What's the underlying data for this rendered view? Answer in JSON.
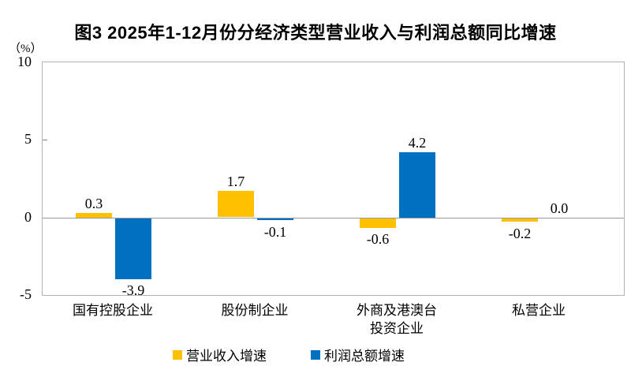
{
  "figure": {
    "title": "图3 2025年1-12月份分经济类型营业收入与利润总额同比增速",
    "y_axis_unit": "（%）"
  },
  "chart_data": {
    "type": "bar",
    "title": "图3 2025年1-12月份分经济类型营业收入与利润总额同比增速",
    "categories": [
      "国有控股企业",
      "股份制企业",
      "外商及港澳台投资企业",
      "私营企业"
    ],
    "category_label_lines": [
      [
        "国有控股企业"
      ],
      [
        "股份制企业"
      ],
      [
        "外商及港澳台",
        "投资企业"
      ],
      [
        "私营企业"
      ]
    ],
    "series": [
      {
        "name": "营业收入增速",
        "color": "#FFC000",
        "values": [
          0.3,
          1.7,
          -0.6,
          -0.2
        ]
      },
      {
        "name": "利润总额增速",
        "color": "#0070C0",
        "values": [
          -3.9,
          -0.1,
          4.2,
          0.0
        ]
      }
    ],
    "ylabel": "（%）",
    "ylim": [
      -5,
      10
    ],
    "yticks": [
      10,
      5,
      0,
      -5
    ],
    "grid": false,
    "legend_position": "bottom",
    "value_labels_shown": true,
    "axis_color": "#b3b3b3",
    "zero_line_color": "#999999"
  }
}
